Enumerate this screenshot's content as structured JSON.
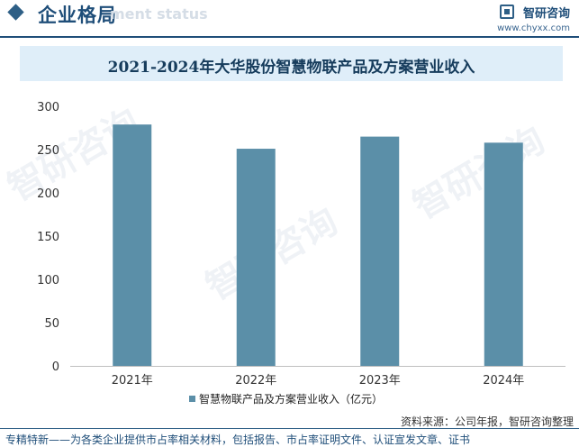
{
  "header": {
    "section_title": "企业格局",
    "section_subtitle": "ment status",
    "brand_name": "智研咨询",
    "brand_url": "www.chyxx.com"
  },
  "colors": {
    "bar": "#5b8fa8",
    "accent": "#1f4e79",
    "title_band": "#dfeef9"
  },
  "chart_data": {
    "type": "bar",
    "title": "2021-2024年大华股份智慧物联产品及方案营业收入",
    "categories": [
      "2021年",
      "2022年",
      "2023年",
      "2024年"
    ],
    "series": [
      {
        "name": "智慧物联产品及方案营业收入（亿元）",
        "values": [
          279,
          251,
          265,
          258
        ]
      }
    ],
    "ylim": [
      0,
      300
    ],
    "yticks": [
      0,
      50,
      100,
      150,
      200,
      250,
      300
    ],
    "xlabel": "",
    "ylabel": "",
    "grid": false,
    "legend_position": "bottom"
  },
  "source": "资料来源：公司年报，智研咨询整理",
  "footer": "专精特新——为各类企业提供市占率相关材料，包括报告、市占率证明文件、认证宣发文章、证书",
  "watermark": "智研咨询"
}
